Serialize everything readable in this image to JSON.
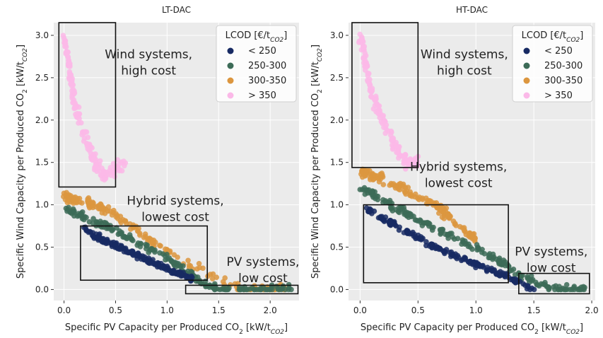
{
  "chart_data": [
    {
      "type": "scatter",
      "title": "LT-DAC",
      "xlabel": "Specific PV Capacity per Produced CO",
      "xlabel_unit": "[kW/t",
      "xlabel_sub": "CO2",
      "xlabel_close": "]",
      "ylabel": "Specific Wind Capacity per Produced CO",
      "ylabel_unit": "[kW/t",
      "ylabel_sub": "CO2",
      "ylabel_close": "]",
      "xlim": [
        -0.1,
        2.28
      ],
      "ylim": [
        -0.13,
        3.15
      ],
      "xticks": [
        "0.0",
        "0.5",
        "1.0",
        "1.5",
        "2.0"
      ],
      "yticks": [
        "0.0",
        "0.5",
        "1.0",
        "1.5",
        "2.0",
        "2.5",
        "3.0"
      ],
      "grid": true,
      "legend": {
        "placement": "top-right",
        "title": "LCOD [€/t",
        "title_sub": "CO2",
        "title_close": "]",
        "entries": [
          "< 250",
          "250-300",
          "300-350",
          "> 350"
        ]
      },
      "colors": {
        "lt250": "#172a63",
        "b250_300": "#3c6b57",
        "b300_350": "#dc963f",
        "gt350": "#fbb9e8"
      },
      "series": [
        {
          "name": "< 250",
          "x": [
            0.2,
            0.35,
            0.5,
            0.65,
            0.8,
            0.95,
            1.1,
            1.25
          ],
          "y": [
            0.72,
            0.6,
            0.52,
            0.44,
            0.35,
            0.27,
            0.2,
            0.12
          ]
        },
        {
          "name": "250-300",
          "x": [
            0.0,
            0.2,
            0.5,
            0.8,
            1.1,
            1.3,
            1.5,
            1.9,
            2.2
          ],
          "y": [
            0.95,
            0.85,
            0.7,
            0.5,
            0.3,
            0.1,
            0.0,
            0.0,
            0.0
          ]
        },
        {
          "name": "300-350",
          "x": [
            0.0,
            0.1,
            0.3,
            0.5,
            0.8,
            1.05,
            1.7,
            2.0,
            2.15
          ],
          "y": [
            1.1,
            1.05,
            1.0,
            0.9,
            0.6,
            0.42,
            0.0,
            0.0,
            0.0
          ]
        },
        {
          "name": "> 350",
          "x": [
            0.0,
            0.05,
            0.1,
            0.2,
            0.3,
            0.4,
            0.6
          ],
          "y": [
            3.0,
            2.6,
            2.2,
            1.8,
            1.5,
            1.35,
            1.5
          ]
        }
      ],
      "annotations": [
        {
          "lines": [
            "Wind systems,",
            "high cost"
          ],
          "x": 0.82,
          "y": 2.73
        },
        {
          "lines": [
            "Hybrid systems,",
            "lowest cost"
          ],
          "x": 1.08,
          "y": 1.0
        },
        {
          "lines": [
            "PV systems,",
            "low cost"
          ],
          "x": 1.93,
          "y": 0.28
        }
      ],
      "boxes": [
        {
          "x0": -0.05,
          "x1": 0.5,
          "y0": 1.21,
          "y1": 3.15
        },
        {
          "x0": 0.16,
          "x1": 1.39,
          "y0": 0.11,
          "y1": 0.75
        },
        {
          "x0": 1.18,
          "x1": 2.27,
          "y0": -0.05,
          "y1": 0.05
        }
      ]
    },
    {
      "type": "scatter",
      "title": "HT-DAC",
      "xlabel": "Specific PV Capacity per Produced CO",
      "xlabel_unit": "[kW/t",
      "xlabel_sub": "CO2",
      "xlabel_close": "]",
      "ylabel": "Specific Wind Capacity per Produced CO",
      "ylabel_unit": "[kW/t",
      "ylabel_sub": "CO2",
      "ylabel_close": "]",
      "xlim": [
        -0.1,
        2.03
      ],
      "ylim": [
        -0.13,
        3.15
      ],
      "xticks": [
        "0.0",
        "0.5",
        "1.0",
        "1.5",
        "2.0"
      ],
      "yticks": [
        "0.0",
        "0.5",
        "1.0",
        "1.5",
        "2.0",
        "2.5",
        "3.0"
      ],
      "grid": true,
      "legend": {
        "placement": "top-right",
        "title": "LCOD [€/t",
        "title_sub": "CO2",
        "title_close": "]",
        "entries": [
          "< 250",
          "250-300",
          "300-350",
          "> 350"
        ]
      },
      "colors": {
        "lt250": "#172a63",
        "b250_300": "#3c6b57",
        "b300_350": "#dc963f",
        "gt350": "#fbb9e8"
      },
      "series": [
        {
          "name": "< 250",
          "x": [
            0.05,
            0.25,
            0.45,
            0.65,
            0.85,
            1.05,
            1.25,
            1.5
          ],
          "y": [
            0.95,
            0.8,
            0.65,
            0.5,
            0.38,
            0.27,
            0.17,
            0.0
          ]
        },
        {
          "name": "250-300",
          "x": [
            0.0,
            0.2,
            0.4,
            0.6,
            0.9,
            1.2,
            1.4,
            1.7,
            1.95
          ],
          "y": [
            1.2,
            1.05,
            0.9,
            0.75,
            0.55,
            0.35,
            0.15,
            0.0,
            0.0
          ]
        },
        {
          "name": "300-350",
          "x": [
            0.0,
            0.1,
            0.3,
            0.5,
            0.7,
            0.85,
            1.0
          ],
          "y": [
            1.4,
            1.35,
            1.25,
            1.1,
            0.95,
            0.75,
            0.6
          ]
        },
        {
          "name": "> 350",
          "x": [
            0.0,
            0.05,
            0.1,
            0.2,
            0.3,
            0.4,
            0.5
          ],
          "y": [
            3.0,
            2.7,
            2.3,
            2.0,
            1.7,
            1.5,
            1.5
          ]
        }
      ],
      "annotations": [
        {
          "lines": [
            "Wind systems,",
            "high cost"
          ],
          "x": 0.9,
          "y": 2.73
        },
        {
          "lines": [
            "Hybrid systems,",
            "lowest cost"
          ],
          "x": 0.85,
          "y": 1.4
        },
        {
          "lines": [
            "PV systems,",
            "low cost"
          ],
          "x": 1.65,
          "y": 0.4
        }
      ],
      "boxes": [
        {
          "x0": -0.07,
          "x1": 0.5,
          "y0": 1.44,
          "y1": 3.15
        },
        {
          "x0": 0.03,
          "x1": 1.28,
          "y0": 0.08,
          "y1": 1.0
        },
        {
          "x0": 1.37,
          "x1": 1.98,
          "y0": -0.05,
          "y1": 0.19
        }
      ]
    }
  ]
}
